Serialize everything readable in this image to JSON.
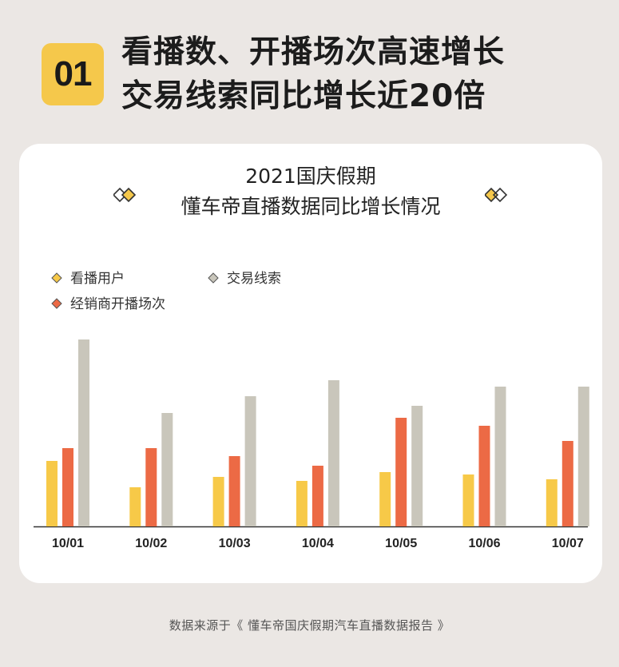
{
  "header": {
    "badge": "01",
    "line1": "看播数、开播场次高速增长",
    "line2": "交易线索同比增长近20倍"
  },
  "card": {
    "title_line1": "2021国庆假期",
    "title_line2": "懂车帝直播数据同比增长情况"
  },
  "colors": {
    "viewers": "#f7c948",
    "sessions": "#ec6a45",
    "leads": "#c9c6bb",
    "badge": "#f5c84b",
    "background": "#ebe7e4"
  },
  "chart_data": {
    "type": "bar",
    "categories": [
      "10/01",
      "10/02",
      "10/03",
      "10/04",
      "10/05",
      "10/06",
      "10/07"
    ],
    "series": [
      {
        "name": "看播用户",
        "values": [
          82,
          49,
          62,
          57,
          68,
          65,
          59
        ]
      },
      {
        "name": "经销商开播场次",
        "values": [
          98,
          98,
          88,
          76,
          136,
          126,
          107
        ]
      },
      {
        "name": "交易线索",
        "values": [
          234,
          142,
          163,
          183,
          151,
          175,
          175
        ]
      }
    ],
    "legend": [
      "看播用户",
      "交易线索",
      "经销商开播场次"
    ],
    "legend_position": "top-left",
    "y_axis_visible": false,
    "grid": false
  },
  "footer": {
    "source": "数据来源于《 懂车帝国庆假期汽车直播数据报告 》"
  }
}
